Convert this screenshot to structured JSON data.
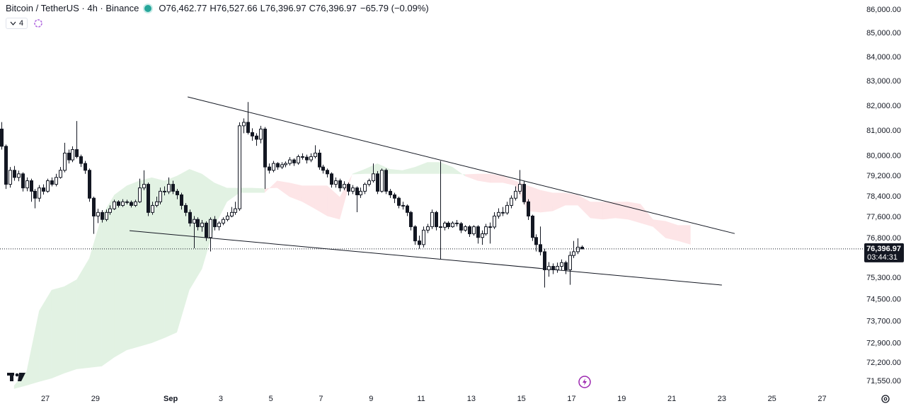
{
  "chart_data": {
    "type": "candlestick",
    "title": "Bitcoin / TetherUS · 4h · Binance",
    "ohlc_legend": [
      {
        "key": "O",
        "value": "76,462.77"
      },
      {
        "key": "H",
        "value": "76,527.66"
      },
      {
        "key": "L",
        "value": "76,396.97"
      },
      {
        "key": "C",
        "value": "76,396.97"
      }
    ],
    "change": "−65.79 (−0.09%)",
    "indicator_count": "4",
    "log_scale": true,
    "xlim": [
      25.19,
      59.37
    ],
    "ylim": [
      71200,
      86420
    ],
    "xticks": [
      27,
      29,
      {
        "value": 32,
        "label": "Sep"
      },
      {
        "value": 34,
        "label": "3"
      },
      {
        "value": 36,
        "label": "5"
      },
      {
        "value": 38,
        "label": "7"
      },
      {
        "value": 40,
        "label": "9"
      },
      {
        "value": 42,
        "label": "11"
      },
      {
        "value": 44,
        "label": "13"
      },
      {
        "value": 46,
        "label": "15"
      },
      {
        "value": 48,
        "label": "17"
      },
      {
        "value": 50,
        "label": "19"
      },
      {
        "value": 52,
        "label": "21"
      },
      {
        "value": 54,
        "label": "23"
      },
      {
        "value": 56,
        "label": "25"
      },
      {
        "value": 58,
        "label": "27"
      }
    ],
    "yticks": [
      {
        "value": 86000,
        "label": "86,000.00"
      },
      {
        "value": 85000,
        "label": "85,000.00"
      },
      {
        "value": 84000,
        "label": "84,000.00"
      },
      {
        "value": 83000,
        "label": "83,000.00"
      },
      {
        "value": 82000,
        "label": "82,000.00"
      },
      {
        "value": 81000,
        "label": "81,000.00"
      },
      {
        "value": 80000,
        "label": "80,000.00"
      },
      {
        "value": 79200,
        "label": "79,200.00"
      },
      {
        "value": 78400,
        "label": "78,400.00"
      },
      {
        "value": 77600,
        "label": "77,600.00"
      },
      {
        "value": 76800,
        "label": "76,800.00"
      },
      {
        "value": 75300,
        "label": "75,300.00"
      },
      {
        "value": 74500,
        "label": "74,500.00"
      },
      {
        "value": 73700,
        "label": "73,700.00"
      },
      {
        "value": 72900,
        "label": "72,900.00"
      },
      {
        "value": 72200,
        "label": "72,200.00"
      },
      {
        "value": 71550,
        "label": "71,550.00"
      }
    ],
    "up_color": "#ffffff",
    "down_color": "#131722",
    "wick_color": "#131722",
    "x": [
      25.25,
      25.42,
      25.58,
      25.75,
      25.92,
      26.08,
      26.25,
      26.42,
      26.58,
      26.75,
      26.92,
      27.08,
      27.25,
      27.42,
      27.58,
      27.75,
      27.92,
      28.08,
      28.25,
      28.42,
      28.58,
      28.75,
      28.92,
      29.08,
      29.25,
      29.42,
      29.58,
      29.75,
      29.92,
      30.08,
      30.25,
      30.42,
      30.58,
      30.75,
      30.92,
      31.08,
      31.25,
      31.42,
      31.58,
      31.75,
      31.92,
      32.08,
      32.25,
      32.42,
      32.58,
      32.75,
      32.92,
      33.08,
      33.25,
      33.42,
      33.58,
      33.75,
      33.92,
      34.08,
      34.25,
      34.42,
      34.58,
      34.75,
      34.92,
      35.08,
      35.25,
      35.42,
      35.58,
      35.75,
      35.92,
      36.08,
      36.25,
      36.42,
      36.58,
      36.75,
      36.92,
      37.08,
      37.25,
      37.42,
      37.58,
      37.75,
      37.92,
      38.08,
      38.25,
      38.42,
      38.58,
      38.75,
      38.92,
      39.08,
      39.25,
      39.42,
      39.58,
      39.75,
      39.92,
      40.08,
      40.25,
      40.42,
      40.58,
      40.75,
      40.92,
      41.08,
      41.25,
      41.42,
      41.58,
      41.75,
      41.92,
      42.08,
      42.25,
      42.42,
      42.58,
      42.75,
      42.92,
      43.08,
      43.25,
      43.42,
      43.58,
      43.75,
      43.92,
      44.08,
      44.25,
      44.42,
      44.58,
      44.75,
      44.92,
      45.08,
      45.25,
      45.42,
      45.58,
      45.75,
      45.92,
      46.08,
      46.25,
      46.42,
      46.58,
      46.75,
      46.92,
      47.08,
      47.25,
      47.42,
      47.58,
      47.75,
      47.92,
      48.08,
      48.25,
      48.42
    ],
    "open": [
      81070,
      80380,
      78880,
      79430,
      79150,
      79290,
      78740,
      79020,
      78610,
      78340,
      78740,
      78610,
      79020,
      78880,
      79150,
      79430,
      80110,
      79840,
      80250,
      79970,
      79700,
      79430,
      78340,
      77650,
      77790,
      77520,
      77790,
      77930,
      78200,
      78060,
      78200,
      78180,
      78060,
      78200,
      78740,
      78880,
      77790,
      78060,
      78200,
      78610,
      78590,
      78880,
      78610,
      78470,
      78060,
      77790,
      77380,
      77520,
      77240,
      77380,
      76830,
      77520,
      77240,
      77380,
      77520,
      77650,
      77790,
      77930,
      81200,
      81340,
      80930,
      80790,
      80660,
      81070,
      79560,
      79430,
      79700,
      79560,
      79650,
      79700,
      79840,
      79720,
      79970,
      79950,
      79840,
      79970,
      80110,
      79560,
      79430,
      79290,
      78880,
      79020,
      78740,
      78880,
      78610,
      78740,
      78470,
      78610,
      78880,
      79020,
      79290,
      78610,
      79430,
      78610,
      78470,
      78340,
      78060,
      78040,
      77790,
      77240,
      76700,
      76560,
      77110,
      77240,
      77790,
      77240,
      77220,
      77380,
      77240,
      77380,
      77360,
      77110,
      77240,
      76970,
      77240,
      76830,
      76970,
      77240,
      77230,
      77650,
      77790,
      77770,
      78060,
      78340,
      78610,
      78880,
      78200,
      77650,
      76830,
      76560,
      76290,
      75610,
      75740,
      75610,
      75740,
      75880,
      75610,
      76150,
      76290,
      76462.77
    ],
    "high": [
      81350,
      80450,
      79560,
      79600,
      79420,
      79350,
      79150,
      79100,
      78700,
      78850,
      78880,
      79100,
      79150,
      79290,
      79560,
      80520,
      80250,
      80380,
      81390,
      80050,
      79800,
      79500,
      78400,
      77930,
      77880,
      77900,
      78060,
      78280,
      78260,
      78300,
      78280,
      78250,
      78280,
      79100,
      79430,
      78950,
      78200,
      78400,
      78750,
      78800,
      79150,
      79020,
      78700,
      78550,
      78150,
      77900,
      77650,
      77600,
      77500,
      77450,
      77600,
      77650,
      77450,
      77600,
      77800,
      78000,
      78200,
      81340,
      81500,
      82160,
      81100,
      80900,
      81200,
      81150,
      79700,
      79800,
      79750,
      79750,
      79780,
      79950,
      79900,
      80050,
      80100,
      80050,
      80100,
      80420,
      80250,
      79650,
      79500,
      79350,
      79150,
      79100,
      79000,
      78950,
      78850,
      78800,
      78750,
      78950,
      79100,
      79700,
      79400,
      79500,
      79500,
      78700,
      78550,
      78400,
      78200,
      78100,
      77850,
      77300,
      76900,
      77250,
      77350,
      77900,
      77850,
      79800,
      77450,
      77450,
      77450,
      77500,
      77420,
      77300,
      77300,
      77300,
      77300,
      77100,
      77350,
      77400,
      77800,
      77950,
      78000,
      78200,
      78450,
      78800,
      79440,
      79000,
      78300,
      77700,
      76950,
      77250,
      76400,
      75900,
      75850,
      75880,
      76000,
      75950,
      76300,
      76700,
      76800,
      76527.66
    ],
    "low": [
      80250,
      78700,
      78750,
      79020,
      79000,
      78600,
      78610,
      78200,
      77950,
      78200,
      78480,
      78550,
      78800,
      78800,
      79100,
      79350,
      79700,
      79750,
      79900,
      79560,
      79290,
      78200,
      76970,
      77380,
      77400,
      77450,
      77700,
      77880,
      77980,
      78000,
      78100,
      77980,
      78000,
      78150,
      78650,
      77650,
      77700,
      77990,
      78100,
      78450,
      78500,
      78500,
      78300,
      77900,
      77650,
      77250,
      76420,
      77100,
      77050,
      76700,
      76300,
      77100,
      77100,
      77300,
      77450,
      77600,
      77700,
      77850,
      80900,
      80850,
      80600,
      80400,
      80500,
      78700,
      79300,
      79350,
      79450,
      79480,
      79550,
      79620,
      79600,
      79650,
      79850,
      79700,
      79750,
      79900,
      79450,
      79300,
      79150,
      78750,
      78750,
      78600,
      78650,
      78450,
      78500,
      77800,
      78350,
      78500,
      78800,
      78950,
      78500,
      78550,
      78500,
      78350,
      78150,
      77950,
      77900,
      77650,
      77100,
      76550,
      76400,
      76450,
      77000,
      77150,
      77100,
      76020,
      77100,
      77150,
      77200,
      77250,
      77000,
      77050,
      76850,
      76900,
      76600,
      76550,
      76900,
      76600,
      77150,
      77550,
      77650,
      77700,
      77950,
      78250,
      78500,
      78100,
      77500,
      76700,
      76300,
      76150,
      74950,
      75350,
      75450,
      75500,
      75600,
      75450,
      75050,
      76050,
      76200,
      76396.97
    ],
    "close": [
      80380,
      78880,
      79430,
      79150,
      79290,
      78740,
      79020,
      78610,
      78340,
      78740,
      78610,
      79020,
      78880,
      79150,
      79430,
      80110,
      79840,
      80250,
      79970,
      79700,
      79430,
      78340,
      77650,
      77790,
      77520,
      77790,
      77930,
      78200,
      78060,
      78200,
      78180,
      78060,
      78200,
      78740,
      78880,
      77790,
      78060,
      78200,
      78610,
      78590,
      78880,
      78610,
      78470,
      78060,
      77790,
      77380,
      77520,
      77240,
      77380,
      76830,
      77520,
      77240,
      77380,
      77520,
      77650,
      77790,
      77930,
      81200,
      81340,
      80930,
      80790,
      80660,
      81070,
      79560,
      79430,
      79700,
      79560,
      79650,
      79700,
      79840,
      79720,
      79970,
      79950,
      79840,
      79970,
      80110,
      79560,
      79430,
      79290,
      78880,
      79020,
      78740,
      78880,
      78610,
      78740,
      78470,
      78610,
      78880,
      79020,
      79290,
      78610,
      79430,
      78610,
      78470,
      78340,
      78060,
      78040,
      77790,
      77240,
      76700,
      76560,
      77110,
      77240,
      77790,
      77240,
      77220,
      77380,
      77240,
      77380,
      77360,
      77110,
      77240,
      76970,
      77240,
      76830,
      76970,
      77240,
      77230,
      77650,
      77790,
      77770,
      78060,
      78340,
      78610,
      78880,
      78200,
      77650,
      76830,
      76560,
      76290,
      75610,
      75740,
      75610,
      75740,
      75880,
      75610,
      76150,
      76290,
      76462.77,
      76396.97
    ],
    "cloud": {
      "up_color": "rgba(76,175,80,0.16)",
      "down_color": "rgba(242,54,69,0.13)",
      "x": [
        25.75,
        26.25,
        26.75,
        27.25,
        27.75,
        28.25,
        28.75,
        29.25,
        29.75,
        30.25,
        30.75,
        31.25,
        31.75,
        32.25,
        32.75,
        33.25,
        33.75,
        34.25,
        34.75,
        35.25,
        35.75,
        36.25,
        36.75,
        37.25,
        37.75,
        38.25,
        38.75,
        39.25,
        39.75,
        40.25,
        40.75,
        41.25,
        41.75,
        42.25,
        42.75,
        43.25,
        43.75,
        44.25,
        44.75,
        45.25,
        45.75,
        46.25,
        46.75,
        47.25,
        47.75,
        48.25,
        48.75,
        49.25,
        49.75,
        50.25,
        50.75,
        51.25,
        51.75,
        52.25,
        52.75
      ],
      "span_a": [
        71400,
        71900,
        74090,
        74860,
        74990,
        75250,
        76040,
        77650,
        78470,
        78830,
        79020,
        79150,
        79020,
        79210,
        79480,
        79290,
        78940,
        78740,
        78740,
        78740,
        78720,
        78740,
        78390,
        78200,
        77930,
        77650,
        77520,
        79290,
        79480,
        79700,
        79480,
        79430,
        79560,
        79750,
        79750,
        79560,
        79200,
        79020,
        78940,
        78940,
        78830,
        77840,
        77790,
        77840,
        78060,
        78060,
        77570,
        77520,
        77570,
        77520,
        77380,
        77240,
        76810,
        76700,
        76560
      ],
      "span_b": [
        71280,
        71400,
        71530,
        71650,
        71830,
        71980,
        72030,
        72080,
        72400,
        72660,
        72790,
        72920,
        73100,
        73300,
        74860,
        75640,
        77240,
        78200,
        78550,
        78550,
        78550,
        79020,
        78940,
        78830,
        78830,
        78830,
        78390,
        79270,
        79290,
        79290,
        79290,
        79290,
        79290,
        79290,
        79290,
        79290,
        79270,
        79290,
        79290,
        79210,
        79020,
        78830,
        78660,
        78550,
        78550,
        78470,
        78200,
        78200,
        78200,
        78200,
        78120,
        77520,
        77460,
        77300,
        77300
      ]
    },
    "trendline_color": "#131722",
    "trendlines": [
      {
        "x": [
          32.68,
          54.51
        ],
        "y": [
          82370,
          76980
        ]
      },
      {
        "x": [
          30.36,
          54.0
        ],
        "y": [
          77090,
          75040
        ]
      }
    ],
    "last_price": {
      "value": 76396.97,
      "label": "76,396.97"
    },
    "countdown": "03:44:31"
  }
}
